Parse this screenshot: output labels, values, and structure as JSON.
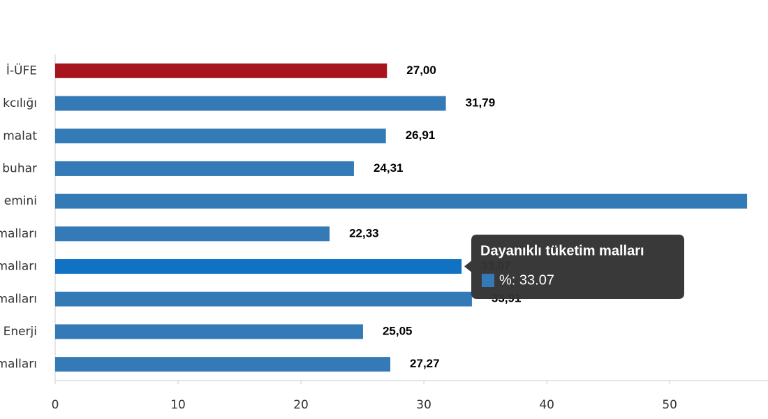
{
  "chart_data": {
    "type": "bar",
    "orientation": "horizontal",
    "categories": [
      "İ-ÜFE",
      "kcılığı",
      "malat",
      "buhar",
      "emini",
      "malları",
      "malları",
      "malları",
      "Enerji",
      "malları"
    ],
    "series": [
      {
        "name": "%",
        "values": [
          27.0,
          31.79,
          26.91,
          24.31,
          56.3,
          22.33,
          33.07,
          33.91,
          25.05,
          27.27
        ],
        "value_labels": [
          "27,00",
          "31,79",
          "26,91",
          "24,31",
          null,
          "22,33",
          "33,07",
          "33,91",
          "25,05",
          "27,27"
        ],
        "colors": [
          "#a8141c",
          "#337ab7",
          "#337ab7",
          "#337ab7",
          "#337ab7",
          "#337ab7",
          "#1172c4",
          "#337ab7",
          "#337ab7",
          "#337ab7"
        ]
      }
    ],
    "xlim": [
      0,
      58
    ],
    "xticks": [
      0,
      10,
      20,
      30,
      40,
      50
    ],
    "tooltip": {
      "title": "Dayanıklı tüketim malları",
      "text": "%: 33.07",
      "index": 6
    }
  }
}
